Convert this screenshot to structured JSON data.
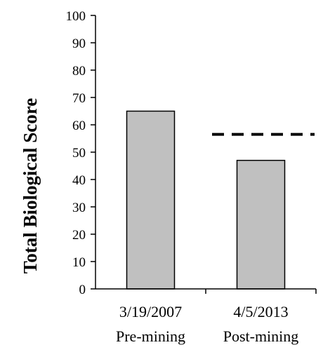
{
  "chart_data": {
    "type": "bar",
    "title": "",
    "xlabel": "",
    "ylabel": "Total Biological Score",
    "categories": [
      "3/19/2007",
      "4/5/2013"
    ],
    "category_sublabels": [
      "Pre-mining",
      "Post-mining"
    ],
    "values": [
      65,
      47
    ],
    "ylim": [
      0,
      100
    ],
    "yticks": [
      0,
      10,
      20,
      30,
      40,
      50,
      60,
      70,
      80,
      90,
      100
    ],
    "grid": false,
    "legend": "none",
    "bar_color": "#c0c0c0",
    "bar_edge_color": "#000000",
    "reference_line": {
      "style": "dashed",
      "value": 56.5,
      "span": "second category",
      "color": "#000000"
    }
  }
}
